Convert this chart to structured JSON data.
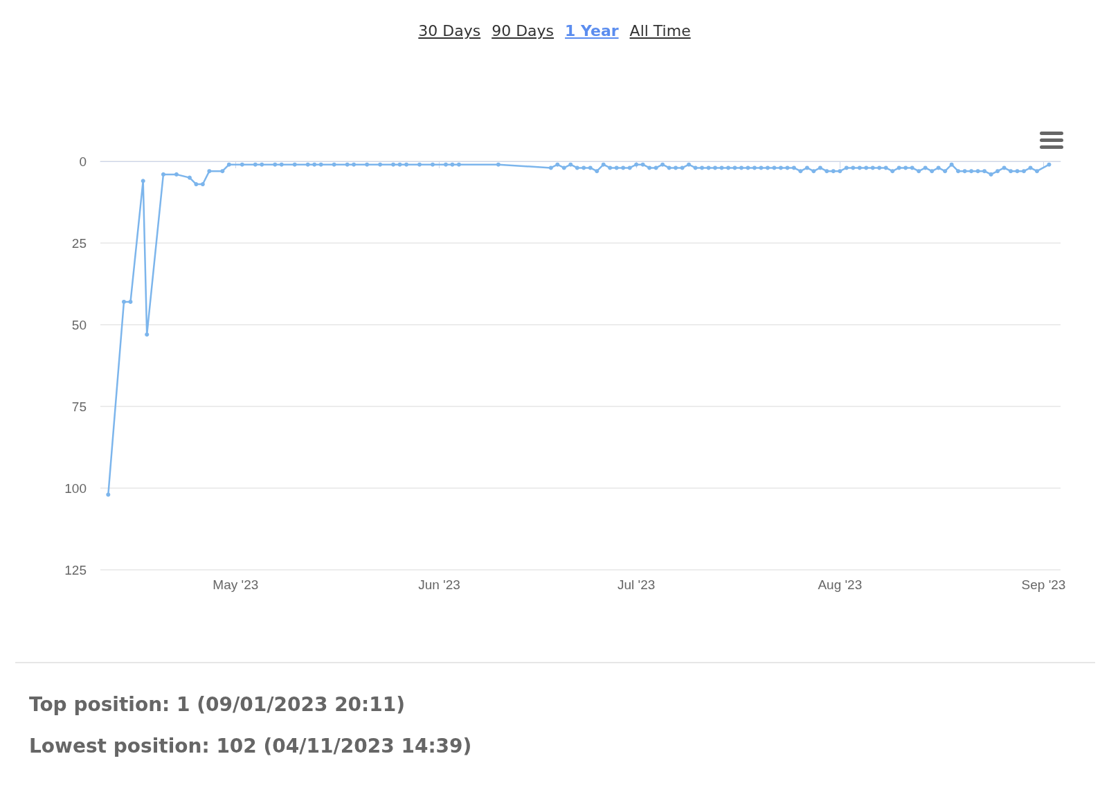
{
  "chart_data": {
    "type": "line",
    "x": [
      "2023-04-11T14:39",
      "2023-04-14",
      "2023-04-15",
      "2023-04-16T22:00",
      "2023-04-17T12:00",
      "2023-04-20",
      "2023-04-22",
      "2023-04-24",
      "2023-04-25",
      "2023-04-26",
      "2023-04-27",
      "2023-04-29",
      "2023-04-30",
      "2023-05-02",
      "2023-05-04",
      "2023-05-05",
      "2023-05-07",
      "2023-05-08",
      "2023-05-10",
      "2023-05-12",
      "2023-05-13",
      "2023-05-14",
      "2023-05-16",
      "2023-05-18",
      "2023-05-19",
      "2023-05-21",
      "2023-05-23",
      "2023-05-25",
      "2023-05-26",
      "2023-05-27",
      "2023-05-29",
      "2023-05-31",
      "2023-06-02",
      "2023-06-03",
      "2023-06-04",
      "2023-06-10",
      "2023-06-18",
      "2023-06-19",
      "2023-06-20",
      "2023-06-21",
      "2023-06-22",
      "2023-06-23",
      "2023-06-24",
      "2023-06-25",
      "2023-06-26",
      "2023-06-27",
      "2023-06-28",
      "2023-06-29",
      "2023-06-30",
      "2023-07-01",
      "2023-07-02",
      "2023-07-03",
      "2023-07-04",
      "2023-07-05",
      "2023-07-06",
      "2023-07-07",
      "2023-07-08",
      "2023-07-09",
      "2023-07-10",
      "2023-07-11",
      "2023-07-12",
      "2023-07-13",
      "2023-07-14",
      "2023-07-15",
      "2023-07-16",
      "2023-07-17",
      "2023-07-18",
      "2023-07-19",
      "2023-07-20",
      "2023-07-21",
      "2023-07-22",
      "2023-07-23",
      "2023-07-24",
      "2023-07-25",
      "2023-07-26",
      "2023-07-27",
      "2023-07-28",
      "2023-07-29",
      "2023-07-30",
      "2023-07-31",
      "2023-08-01",
      "2023-08-02",
      "2023-08-03",
      "2023-08-04",
      "2023-08-05",
      "2023-08-06",
      "2023-08-07",
      "2023-08-08",
      "2023-08-09",
      "2023-08-10",
      "2023-08-11",
      "2023-08-12",
      "2023-08-13",
      "2023-08-14",
      "2023-08-15",
      "2023-08-16",
      "2023-08-17",
      "2023-08-18",
      "2023-08-19",
      "2023-08-20",
      "2023-08-21",
      "2023-08-22",
      "2023-08-23",
      "2023-08-24",
      "2023-08-25",
      "2023-08-26",
      "2023-08-27",
      "2023-08-28",
      "2023-08-29",
      "2023-08-30",
      "2023-08-31",
      "2023-09-01T20:11"
    ],
    "series": [
      {
        "color": "#7cb5ec",
        "values": [
          102,
          43,
          43,
          6,
          53,
          4,
          4,
          5,
          7,
          7,
          3,
          3,
          1,
          1,
          1,
          1,
          1,
          1,
          1,
          1,
          1,
          1,
          1,
          1,
          1,
          1,
          1,
          1,
          1,
          1,
          1,
          1,
          1,
          1,
          1,
          1,
          2,
          1,
          2,
          1,
          2,
          2,
          2,
          3,
          1,
          2,
          2,
          2,
          2,
          1,
          1,
          2,
          2,
          1,
          2,
          2,
          2,
          1,
          2,
          2,
          2,
          2,
          2,
          2,
          2,
          2,
          2,
          2,
          2,
          2,
          2,
          2,
          2,
          2,
          3,
          2,
          3,
          2,
          3,
          3,
          3,
          2,
          2,
          2,
          2,
          2,
          2,
          2,
          3,
          2,
          2,
          2,
          3,
          2,
          3,
          2,
          3,
          1,
          3,
          3,
          3,
          3,
          3,
          4,
          3,
          2,
          3,
          3,
          3,
          2,
          3,
          1
        ]
      }
    ],
    "xlim": [
      "2023-04-10T10:00",
      "2023-09-03T14:00"
    ],
    "xticks": [
      {
        "value": "2023-05-01",
        "label": "May '23"
      },
      {
        "value": "2023-06-01",
        "label": "Jun '23"
      },
      {
        "value": "2023-07-01",
        "label": "Jul '23"
      },
      {
        "value": "2023-08-01",
        "label": "Aug '23"
      },
      {
        "value": "2023-09-01",
        "label": "Sep '23"
      }
    ],
    "ylim": [
      125,
      0
    ],
    "yticks": [
      0,
      25,
      50,
      75,
      100,
      125
    ],
    "grid": "y",
    "marker": "circle",
    "line_style": "solid",
    "annotations": [
      "30 Days",
      "90 Days",
      "1 Year",
      "All Time",
      "Top position: 1 (09/01/2023 20:11)",
      "Lowest position: 102 (04/11/2023 14:39)"
    ]
  }
}
